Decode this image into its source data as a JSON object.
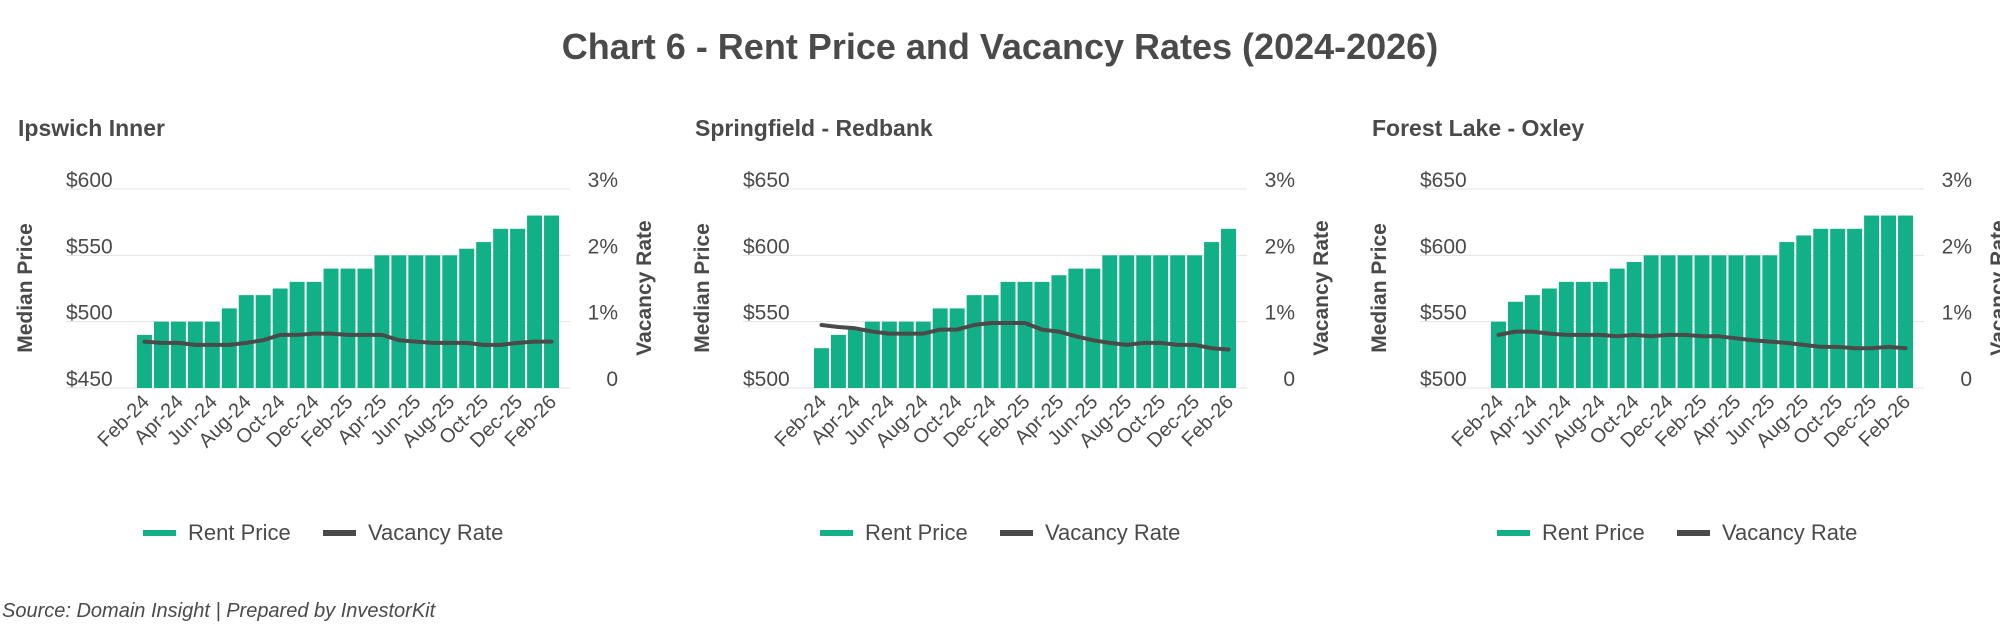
{
  "title": "Chart 6 - Rent Price and Vacancy Rates (2024-2026)",
  "source": "Source: Domain Insight | Prepared by InvestorKit",
  "colors": {
    "bar": "#12b087",
    "line": "#4a4a4a",
    "grid": "#e3e3e3",
    "text": "#4a4a4a"
  },
  "chart_data": [
    {
      "type": "bar",
      "title": "Ipswich Inner",
      "ylabel": "Median Price",
      "y2label": "Vacancy Rate",
      "ylim": [
        450,
        600
      ],
      "yticks": [
        "$450",
        "$500",
        "$550",
        "$600"
      ],
      "y2lim": [
        0,
        3
      ],
      "y2ticks": [
        "0",
        "1%",
        "2%",
        "3%"
      ],
      "grid": true,
      "legend": "bottom",
      "tick_labels": [
        "Feb-24",
        "Apr-24",
        "Jun-24",
        "Aug-24",
        "Oct-24",
        "Dec-24",
        "Feb-25",
        "Apr-25",
        "Jun-25",
        "Aug-25",
        "Oct-25",
        "Dec-25",
        "Feb-26"
      ],
      "series": [
        {
          "name": "Rent Price",
          "kind": "bar",
          "values": [
            490,
            500,
            500,
            500,
            500,
            510,
            520,
            520,
            525,
            530,
            530,
            540,
            540,
            540,
            550,
            550,
            550,
            550,
            550,
            555,
            560,
            570,
            570,
            580,
            580
          ]
        },
        {
          "name": "Vacancy Rate",
          "kind": "line",
          "values": [
            0.7,
            0.68,
            0.68,
            0.65,
            0.65,
            0.65,
            0.68,
            0.72,
            0.8,
            0.8,
            0.82,
            0.82,
            0.8,
            0.8,
            0.8,
            0.72,
            0.7,
            0.68,
            0.68,
            0.68,
            0.65,
            0.65,
            0.68,
            0.7,
            0.7
          ]
        }
      ]
    },
    {
      "type": "bar",
      "title": "Springfield - Redbank",
      "ylabel": "Median Price",
      "y2label": "Vacancy Rate",
      "ylim": [
        500,
        650
      ],
      "yticks": [
        "$500",
        "$550",
        "$600",
        "$650"
      ],
      "y2lim": [
        0,
        3
      ],
      "y2ticks": [
        "0",
        "1%",
        "2%",
        "3%"
      ],
      "grid": true,
      "legend": "bottom",
      "tick_labels": [
        "Feb-24",
        "Apr-24",
        "Jun-24",
        "Aug-24",
        "Oct-24",
        "Dec-24",
        "Feb-25",
        "Apr-25",
        "Jun-25",
        "Aug-25",
        "Oct-25",
        "Dec-25",
        "Feb-26"
      ],
      "series": [
        {
          "name": "Rent Price",
          "kind": "bar",
          "values": [
            530,
            540,
            545,
            550,
            550,
            550,
            550,
            560,
            560,
            570,
            570,
            580,
            580,
            580,
            585,
            590,
            590,
            600,
            600,
            600,
            600,
            600,
            600,
            610,
            620
          ]
        },
        {
          "name": "Vacancy Rate",
          "kind": "line",
          "values": [
            0.95,
            0.92,
            0.9,
            0.85,
            0.82,
            0.82,
            0.82,
            0.88,
            0.88,
            0.95,
            0.98,
            0.98,
            0.98,
            0.88,
            0.85,
            0.78,
            0.72,
            0.68,
            0.65,
            0.68,
            0.68,
            0.65,
            0.65,
            0.6,
            0.58
          ]
        }
      ]
    },
    {
      "type": "bar",
      "title": "Forest Lake - Oxley",
      "ylabel": "Median Price",
      "y2label": "Vacancy Rate",
      "ylim": [
        500,
        650
      ],
      "yticks": [
        "$500",
        "$550",
        "$600",
        "$650"
      ],
      "y2lim": [
        0,
        3
      ],
      "y2ticks": [
        "0",
        "1%",
        "2%",
        "3%"
      ],
      "grid": true,
      "legend": "bottom",
      "tick_labels": [
        "Feb-24",
        "Apr-24",
        "Jun-24",
        "Aug-24",
        "Oct-24",
        "Dec-24",
        "Feb-25",
        "Apr-25",
        "Jun-25",
        "Aug-25",
        "Oct-25",
        "Dec-25",
        "Feb-26"
      ],
      "series": [
        {
          "name": "Rent Price",
          "kind": "bar",
          "values": [
            550,
            565,
            570,
            575,
            580,
            580,
            580,
            590,
            595,
            600,
            600,
            600,
            600,
            600,
            600,
            600,
            600,
            610,
            615,
            620,
            620,
            620,
            630,
            630,
            630
          ]
        },
        {
          "name": "Vacancy Rate",
          "kind": "line",
          "values": [
            0.8,
            0.85,
            0.85,
            0.82,
            0.8,
            0.8,
            0.8,
            0.78,
            0.8,
            0.78,
            0.8,
            0.8,
            0.78,
            0.78,
            0.75,
            0.72,
            0.7,
            0.68,
            0.65,
            0.62,
            0.62,
            0.6,
            0.6,
            0.62,
            0.6
          ]
        }
      ]
    }
  ]
}
